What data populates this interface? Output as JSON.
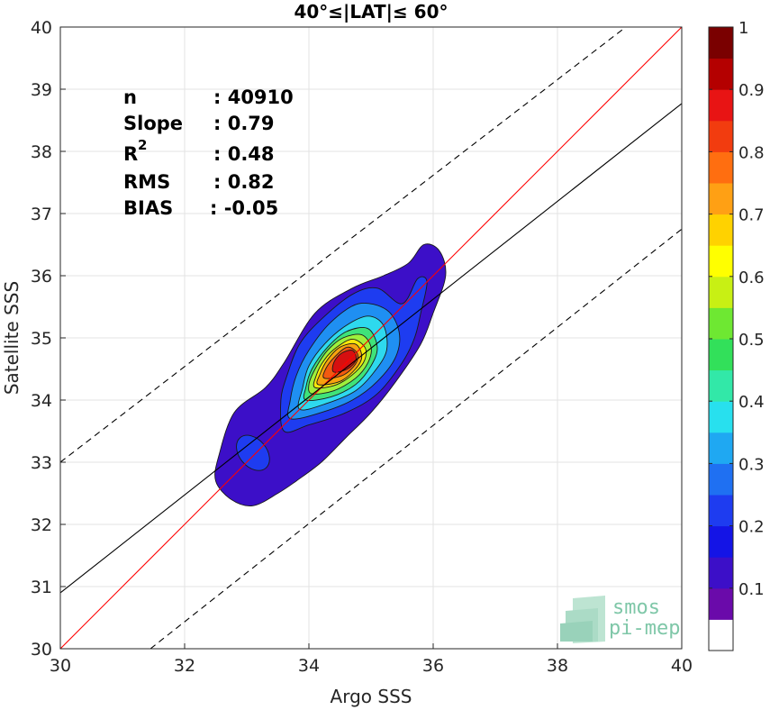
{
  "chart_data": {
    "type": "contour-density",
    "title": "40°≤|LAT|≤ 60°",
    "xlabel": "Argo SSS",
    "ylabel": "Satellite SSS",
    "xlim": [
      30,
      40
    ],
    "ylim": [
      30,
      40
    ],
    "xticks": [
      "30",
      "32",
      "34",
      "36",
      "38",
      "40"
    ],
    "yticks": [
      "30",
      "31",
      "32",
      "33",
      "34",
      "35",
      "36",
      "37",
      "38",
      "39",
      "40"
    ],
    "grid": true,
    "stats": {
      "n_label": "n",
      "n_value": ": 40910",
      "slope_label": "Slope",
      "slope_value": ": 0.79",
      "r2_label": "R",
      "r2_sup": "2",
      "r2_value": ": 0.48",
      "rms_label": "RMS",
      "rms_value": ": 0.82",
      "bias_label": "BIAS",
      "bias_value": ": -0.05"
    },
    "lines": [
      {
        "name": "identity",
        "color": "#ff0000",
        "x": [
          30,
          40
        ],
        "y": [
          30,
          40
        ],
        "style": "solid"
      },
      {
        "name": "regression",
        "color": "#000000",
        "x": [
          30,
          40
        ],
        "y": [
          30.9,
          38.77
        ],
        "style": "solid"
      },
      {
        "name": "upper-bound",
        "color": "#000000",
        "x": [
          30,
          39.1
        ],
        "y": [
          33.0,
          40.0
        ],
        "style": "dashed"
      },
      {
        "name": "lower-bound",
        "color": "#000000",
        "x": [
          31.45,
          40
        ],
        "y": [
          30.0,
          36.75
        ],
        "style": "dashed"
      }
    ],
    "contours": [
      {
        "level": 0.05,
        "color": "#3c0fc8",
        "points": [
          [
            32.75,
            32.4
          ],
          [
            33.1,
            32.3
          ],
          [
            33.5,
            32.5
          ],
          [
            33.8,
            32.7
          ],
          [
            34.2,
            33.0
          ],
          [
            34.6,
            33.4
          ],
          [
            35.0,
            33.8
          ],
          [
            35.4,
            34.3
          ],
          [
            35.8,
            34.9
          ],
          [
            36.0,
            35.4
          ],
          [
            36.2,
            36.0
          ],
          [
            36.1,
            36.4
          ],
          [
            35.85,
            36.5
          ],
          [
            35.6,
            36.2
          ],
          [
            35.2,
            36.0
          ],
          [
            34.7,
            35.8
          ],
          [
            34.1,
            35.4
          ],
          [
            33.6,
            34.6
          ],
          [
            33.3,
            34.2
          ],
          [
            32.8,
            33.8
          ],
          [
            32.55,
            33.1
          ],
          [
            32.5,
            32.7
          ]
        ]
      },
      {
        "level": 0.15,
        "color": "#1e3cf0",
        "points": [
          [
            33.6,
            33.5
          ],
          [
            34.0,
            33.6
          ],
          [
            34.6,
            33.8
          ],
          [
            35.1,
            34.1
          ],
          [
            35.5,
            34.6
          ],
          [
            35.7,
            35.0
          ],
          [
            35.8,
            35.4
          ],
          [
            35.9,
            35.9
          ],
          [
            35.75,
            35.95
          ],
          [
            35.5,
            35.55
          ],
          [
            35.1,
            35.8
          ],
          [
            34.7,
            35.7
          ],
          [
            34.2,
            35.3
          ],
          [
            33.85,
            34.9
          ],
          [
            33.65,
            34.4
          ],
          [
            33.55,
            34.0
          ]
        ]
      },
      {
        "level": 0.25,
        "color": "#1f8ff2",
        "points": [
          [
            33.7,
            33.7
          ],
          [
            34.2,
            33.8
          ],
          [
            34.7,
            34.0
          ],
          [
            35.1,
            34.3
          ],
          [
            35.4,
            34.7
          ],
          [
            35.45,
            35.1
          ],
          [
            35.25,
            35.45
          ],
          [
            34.8,
            35.55
          ],
          [
            34.35,
            35.25
          ],
          [
            34.0,
            34.8
          ],
          [
            33.8,
            34.4
          ],
          [
            33.7,
            34.0
          ]
        ]
      },
      {
        "level": 0.35,
        "color": "#2ed9ee",
        "points": [
          [
            33.85,
            33.85
          ],
          [
            34.3,
            33.95
          ],
          [
            34.75,
            34.15
          ],
          [
            35.05,
            34.45
          ],
          [
            35.25,
            34.8
          ],
          [
            35.2,
            35.2
          ],
          [
            34.95,
            35.35
          ],
          [
            34.6,
            35.2
          ],
          [
            34.25,
            34.9
          ],
          [
            34.0,
            34.55
          ],
          [
            33.9,
            34.2
          ]
        ]
      },
      {
        "level": 0.45,
        "color": "#3fe37a",
        "points": [
          [
            33.95,
            34.0
          ],
          [
            34.35,
            34.05
          ],
          [
            34.75,
            34.25
          ],
          [
            35.0,
            34.55
          ],
          [
            35.1,
            34.85
          ],
          [
            34.95,
            35.15
          ],
          [
            34.6,
            35.1
          ],
          [
            34.3,
            34.85
          ],
          [
            34.05,
            34.5
          ],
          [
            33.95,
            34.2
          ]
        ]
      },
      {
        "level": 0.55,
        "color": "#9ef03c",
        "points": [
          [
            34.05,
            34.1
          ],
          [
            34.4,
            34.15
          ],
          [
            34.75,
            34.35
          ],
          [
            34.95,
            34.6
          ],
          [
            35.0,
            34.85
          ],
          [
            34.85,
            35.05
          ],
          [
            34.55,
            35.0
          ],
          [
            34.3,
            34.8
          ],
          [
            34.1,
            34.5
          ],
          [
            34.0,
            34.25
          ]
        ]
      },
      {
        "level": 0.65,
        "color": "#f6e80a",
        "points": [
          [
            34.1,
            34.2
          ],
          [
            34.45,
            34.25
          ],
          [
            34.75,
            34.45
          ],
          [
            34.9,
            34.65
          ],
          [
            34.9,
            34.85
          ],
          [
            34.7,
            34.98
          ],
          [
            34.45,
            34.85
          ],
          [
            34.25,
            34.65
          ],
          [
            34.12,
            34.4
          ]
        ]
      },
      {
        "level": 0.75,
        "color": "#f7a20f",
        "points": [
          [
            34.15,
            34.25
          ],
          [
            34.5,
            34.3
          ],
          [
            34.75,
            34.5
          ],
          [
            34.85,
            34.7
          ],
          [
            34.75,
            34.9
          ],
          [
            34.5,
            34.85
          ],
          [
            34.3,
            34.65
          ],
          [
            34.18,
            34.42
          ]
        ]
      },
      {
        "level": 0.85,
        "color": "#f25a10",
        "points": [
          [
            34.25,
            34.35
          ],
          [
            34.55,
            34.4
          ],
          [
            34.75,
            34.58
          ],
          [
            34.78,
            34.75
          ],
          [
            34.62,
            34.85
          ],
          [
            34.42,
            34.7
          ],
          [
            34.27,
            34.5
          ]
        ]
      },
      {
        "level": 0.92,
        "color": "#d61010",
        "points": [
          [
            34.4,
            34.45
          ],
          [
            34.62,
            34.5
          ],
          [
            34.76,
            34.65
          ],
          [
            34.7,
            34.8
          ],
          [
            34.52,
            34.75
          ],
          [
            34.4,
            34.6
          ]
        ]
      }
    ],
    "blobs": [
      {
        "level": 0.15,
        "color": "#1e3cf0",
        "cx": 33.1,
        "cy": 33.15,
        "rx": 0.22,
        "ry": 0.32
      }
    ],
    "colorbar": {
      "ticks": [
        "0.1",
        "0.2",
        "0.3",
        "0.4",
        "0.5",
        "0.6",
        "0.7",
        "0.8",
        "0.9",
        "1"
      ],
      "colors": [
        "#ffffff",
        "#6a0aaa",
        "#3c0fc8",
        "#1414e6",
        "#1e3cf0",
        "#1f70f2",
        "#1fa8f2",
        "#28e0ee",
        "#32e8a8",
        "#32e05a",
        "#6ee832",
        "#c8f014",
        "#ffff00",
        "#ffd200",
        "#ffa014",
        "#ff6e10",
        "#f23c0f",
        "#e81414",
        "#b40000",
        "#7a0000"
      ]
    }
  },
  "logo": {
    "line1": "smos",
    "line2": "pi-mep"
  }
}
